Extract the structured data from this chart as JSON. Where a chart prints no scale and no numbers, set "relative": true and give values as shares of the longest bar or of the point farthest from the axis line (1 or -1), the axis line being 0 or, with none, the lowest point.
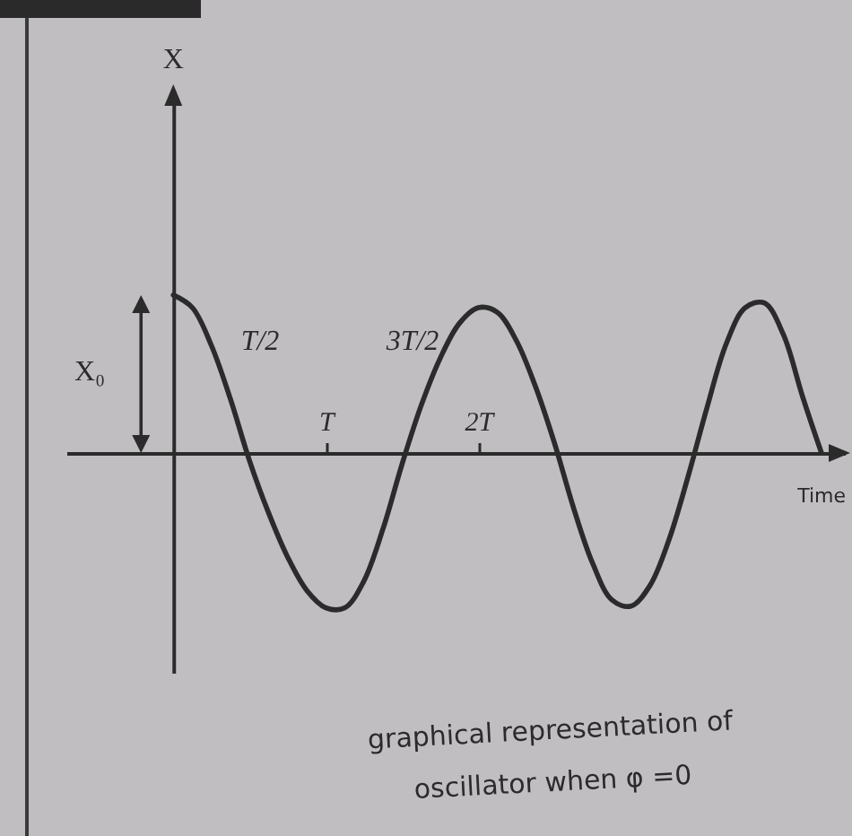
{
  "chart_data": {
    "type": "line",
    "xlabel": "Time",
    "relative": true,
    "color": "#2b2b2b",
    "categories": [
      null,
      null,
      null,
      null,
      null,
      null,
      null,
      null,
      "T",
      null,
      null,
      null,
      null,
      null,
      null,
      null,
      "2T",
      null,
      null,
      null,
      null,
      null,
      null,
      null,
      null,
      null,
      null,
      null,
      null,
      null,
      null,
      null,
      null,
      null,
      null
    ],
    "values": [
      1,
      0.92,
      0.68,
      0.34,
      -0.05,
      -0.38,
      -0.66,
      -0.87,
      -0.98,
      -0.98,
      -0.81,
      -0.48,
      -0.07,
      0.3,
      0.6,
      0.82,
      0.92,
      0.89,
      0.71,
      0.42,
      0.06,
      -0.35,
      -0.7,
      -0.93,
      -0.97,
      -0.84,
      -0.55,
      -0.15,
      0.29,
      0.69,
      0.92,
      0.95,
      0.75,
      0.36,
      0
    ],
    "annotations": [
      "X",
      "X₀",
      "T/2",
      "3T/2",
      "graphical representation of oscillator when φ =0"
    ]
  }
}
